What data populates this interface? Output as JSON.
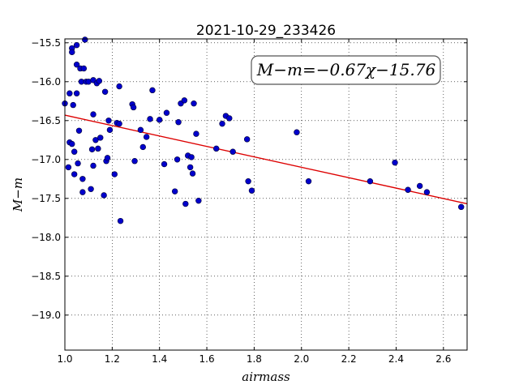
{
  "chart_data": {
    "type": "scatter",
    "title": "2021-10-29_233426",
    "xlabel": "airmass",
    "ylabel": "M−m",
    "xlim": [
      1.0,
      2.7
    ],
    "ylim": [
      -19.45,
      -15.45
    ],
    "x_ticks": [
      1.0,
      1.2,
      1.4,
      1.6,
      1.8,
      2.0,
      2.2,
      2.4,
      2.6
    ],
    "x_tick_labels": [
      "1.0",
      "1.2",
      "1.4",
      "1.6",
      "1.8",
      "2.0",
      "2.2",
      "2.4",
      "2.6"
    ],
    "y_ticks": [
      -15.5,
      -16.0,
      -16.5,
      -17.0,
      -17.5,
      -18.0,
      -18.5,
      -19.0
    ],
    "y_tick_labels": [
      "−15.5",
      "−16.0",
      "−16.5",
      "−17.0",
      "−17.5",
      "−18.0",
      "−18.5",
      "−19.0"
    ],
    "grid": true,
    "annotation": "M−m=−0.67χ−15.76",
    "marker_color": "#0000cc",
    "fit_color": "#dd0000",
    "fit": {
      "slope": -0.67,
      "intercept": -15.76
    },
    "points": [
      [
        1.0,
        -16.28
      ],
      [
        1.015,
        -17.1
      ],
      [
        1.02,
        -16.15
      ],
      [
        1.02,
        -16.78
      ],
      [
        1.03,
        -16.8
      ],
      [
        1.03,
        -15.57
      ],
      [
        1.03,
        -15.62
      ],
      [
        1.035,
        -16.3
      ],
      [
        1.04,
        -17.19
      ],
      [
        1.04,
        -16.9
      ],
      [
        1.05,
        -15.53
      ],
      [
        1.05,
        -15.78
      ],
      [
        1.05,
        -16.15
      ],
      [
        1.055,
        -17.05
      ],
      [
        1.06,
        -16.63
      ],
      [
        1.065,
        -15.83
      ],
      [
        1.07,
        -16.0
      ],
      [
        1.075,
        -17.42
      ],
      [
        1.075,
        -17.25
      ],
      [
        1.08,
        -15.83
      ],
      [
        1.085,
        -15.46
      ],
      [
        1.09,
        -16.0
      ],
      [
        1.1,
        -16.0
      ],
      [
        1.11,
        -17.38
      ],
      [
        1.115,
        -16.87
      ],
      [
        1.12,
        -15.98
      ],
      [
        1.12,
        -16.42
      ],
      [
        1.12,
        -17.08
      ],
      [
        1.13,
        -16.75
      ],
      [
        1.135,
        -16.02
      ],
      [
        1.14,
        -16.86
      ],
      [
        1.145,
        -15.99
      ],
      [
        1.15,
        -16.72
      ],
      [
        1.165,
        -17.46
      ],
      [
        1.17,
        -16.13
      ],
      [
        1.175,
        -17.02
      ],
      [
        1.18,
        -16.98
      ],
      [
        1.185,
        -16.5
      ],
      [
        1.19,
        -16.62
      ],
      [
        1.21,
        -17.19
      ],
      [
        1.22,
        -16.53
      ],
      [
        1.23,
        -16.54
      ],
      [
        1.23,
        -16.06
      ],
      [
        1.235,
        -17.79
      ],
      [
        1.285,
        -16.29
      ],
      [
        1.29,
        -16.33
      ],
      [
        1.295,
        -17.02
      ],
      [
        1.32,
        -16.62
      ],
      [
        1.33,
        -16.84
      ],
      [
        1.345,
        -16.71
      ],
      [
        1.36,
        -16.48
      ],
      [
        1.37,
        -16.11
      ],
      [
        1.4,
        -16.49
      ],
      [
        1.42,
        -17.06
      ],
      [
        1.43,
        -16.4
      ],
      [
        1.465,
        -17.41
      ],
      [
        1.475,
        -17.0
      ],
      [
        1.48,
        -16.52
      ],
      [
        1.49,
        -16.28
      ],
      [
        1.505,
        -16.24
      ],
      [
        1.51,
        -17.57
      ],
      [
        1.52,
        -16.95
      ],
      [
        1.53,
        -17.1
      ],
      [
        1.535,
        -16.97
      ],
      [
        1.54,
        -17.18
      ],
      [
        1.545,
        -16.28
      ],
      [
        1.555,
        -16.67
      ],
      [
        1.565,
        -17.53
      ],
      [
        1.64,
        -16.86
      ],
      [
        1.665,
        -16.54
      ],
      [
        1.68,
        -16.44
      ],
      [
        1.695,
        -16.47
      ],
      [
        1.71,
        -16.9
      ],
      [
        1.77,
        -16.74
      ],
      [
        1.775,
        -17.28
      ],
      [
        1.79,
        -17.4
      ],
      [
        1.98,
        -16.65
      ],
      [
        2.03,
        -17.28
      ],
      [
        2.29,
        -17.28
      ],
      [
        2.395,
        -17.04
      ],
      [
        2.45,
        -17.39
      ],
      [
        2.5,
        -17.34
      ],
      [
        2.53,
        -17.42
      ],
      [
        2.675,
        -17.61
      ]
    ]
  }
}
